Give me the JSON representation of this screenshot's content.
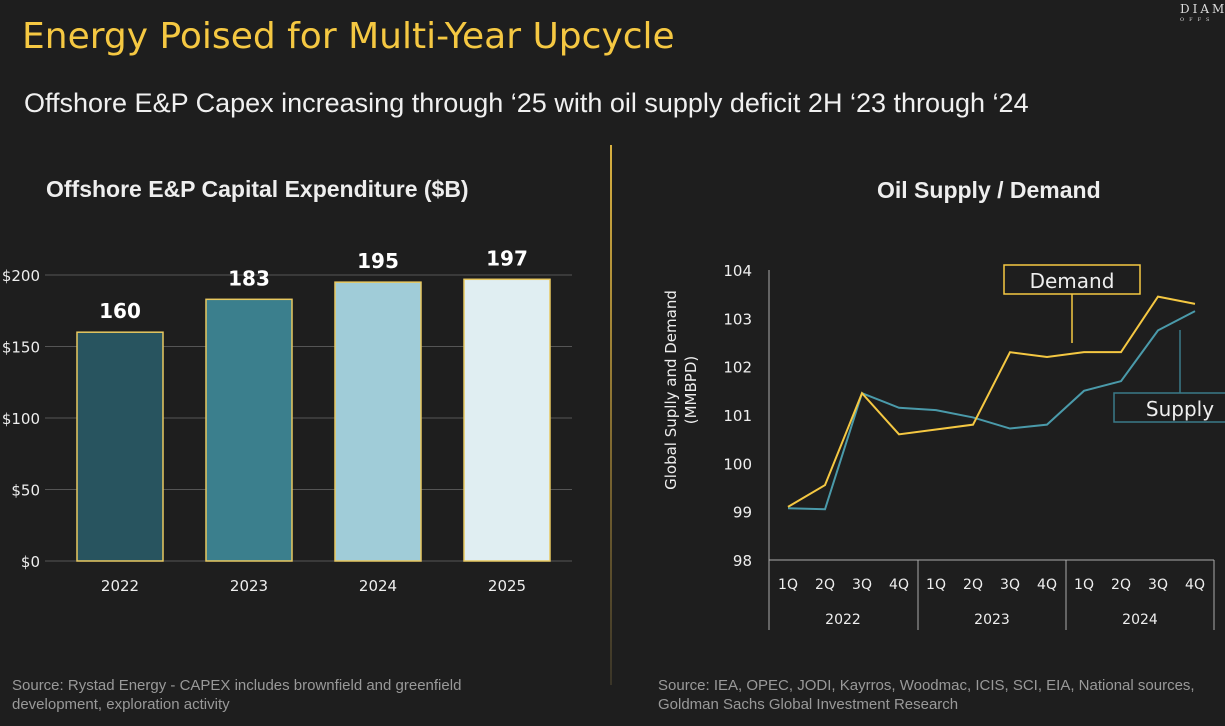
{
  "header": {
    "title": "Energy Poised for Multi-Year Upcycle",
    "subtitle": "Offshore E&P Capex increasing through ‘25 with oil supply deficit 2H ‘23 through ‘24",
    "logo_line1": "DIAM",
    "logo_line2": "OFFS"
  },
  "left_source": "Source: Rystad Energy -  CAPEX includes brownfield and greenfield development, exploration activity",
  "right_source": "Source: IEA, OPEC, JODI, Kayrros, Woodmac, ICIS, SCI, EIA, National sources, Goldman Sachs Global Investment Research",
  "chart_data": [
    {
      "type": "bar",
      "title": "Offshore E&P Capital Expenditure ($B)",
      "categories": [
        "2022",
        "2023",
        "2024",
        "2025"
      ],
      "values": [
        160,
        183,
        195,
        197
      ],
      "ylim": [
        0,
        200
      ],
      "yticks": [
        0,
        50,
        100,
        150,
        200
      ],
      "ytick_labels": [
        "$0",
        "$50",
        "$100",
        "$150",
        "$200"
      ],
      "grid": true,
      "colors": [
        "#28545f",
        "#3b7f8d",
        "#a0ccd8",
        "#e0eef2"
      ],
      "edge_color": "#e8c860"
    },
    {
      "type": "line",
      "title": "Oil Supply / Demand",
      "ylabel": "Global Suplly and Demand (MMBPD)",
      "ylim": [
        98,
        104
      ],
      "yticks": [
        98,
        99,
        100,
        101,
        102,
        103,
        104
      ],
      "categories": [
        "1Q",
        "2Q",
        "3Q",
        "4Q",
        "1Q",
        "2Q",
        "3Q",
        "4Q",
        "1Q",
        "2Q",
        "3Q",
        "4Q"
      ],
      "years": [
        "2022",
        "2023",
        "2024"
      ],
      "series": [
        {
          "name": "Demand",
          "color": "#f5c842",
          "values": [
            99.1,
            99.55,
            101.45,
            100.6,
            100.7,
            100.8,
            102.3,
            102.2,
            102.3,
            102.3,
            103.45,
            103.3
          ]
        },
        {
          "name": "Supply",
          "color": "#4a9aaa",
          "values": [
            99.07,
            99.05,
            101.45,
            101.15,
            101.1,
            100.95,
            100.72,
            100.8,
            101.5,
            101.7,
            102.75,
            103.15
          ]
        }
      ]
    }
  ]
}
